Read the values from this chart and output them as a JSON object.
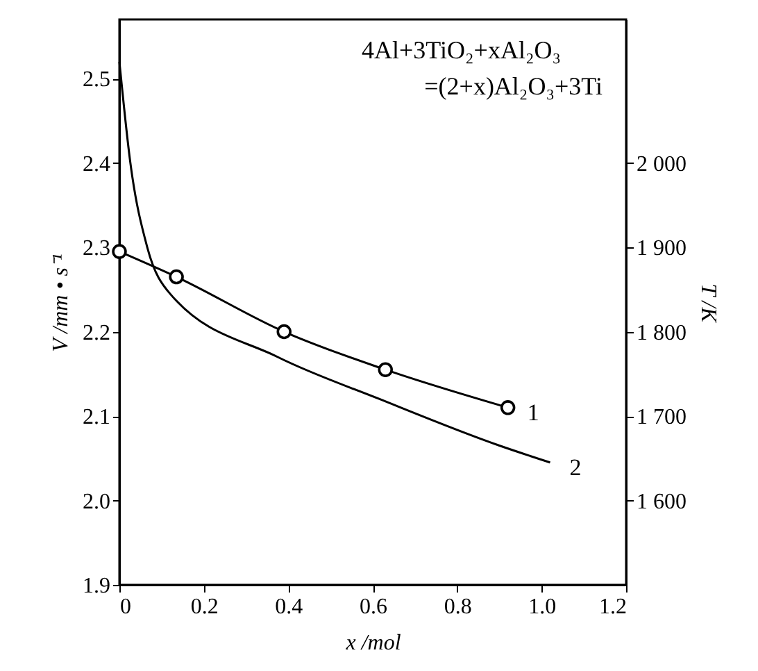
{
  "chart_data": {
    "type": "line",
    "xlabel": "x /mol",
    "ylabel": "V /mm • s⁻¹",
    "y2label": "T /K",
    "annotations": [
      "4Al+3TiO₂+xAl₂O₃",
      "=(2+x)Al₂O₃+3Ti"
    ],
    "xlim": [
      0,
      1.2
    ],
    "xticks": [
      0,
      0.2,
      0.4,
      0.6,
      0.8,
      {
        "value": 1.0,
        "label": "1.0"
      },
      1.2
    ],
    "ylim": [
      1.9,
      2.57
    ],
    "yticks": [
      1.9,
      {
        "value": 2.0,
        "label": "2.0"
      },
      2.1,
      2.2,
      2.3,
      2.4,
      2.5
    ],
    "y2lim": [
      1500,
      2170
    ],
    "y2ticks": [
      {
        "value": 1600,
        "label": "1 600"
      },
      {
        "value": 1700,
        "label": "1 700"
      },
      {
        "value": 1800,
        "label": "1 800"
      },
      {
        "value": 1900,
        "label": "1 900"
      },
      {
        "value": 2000,
        "label": "2 000"
      }
    ],
    "grid": false,
    "legend": false,
    "line_style": "solid",
    "series": [
      {
        "name": "1",
        "color": "#000000",
        "axis": "y2",
        "marker": "circle",
        "x": [
          0,
          0.135,
          0.39,
          0.63,
          0.92
        ],
        "values": [
          1895,
          1865,
          1800,
          1755,
          1710
        ]
      },
      {
        "name": "2",
        "color": "#000000",
        "marker": "none",
        "x": [
          0,
          0.026,
          0.066,
          0.12,
          0.375,
          0.617,
          0.9,
          1.02
        ],
        "values": [
          2.52,
          2.4,
          2.3,
          2.245,
          2.17,
          2.12,
          2.065,
          2.045
        ]
      }
    ]
  }
}
